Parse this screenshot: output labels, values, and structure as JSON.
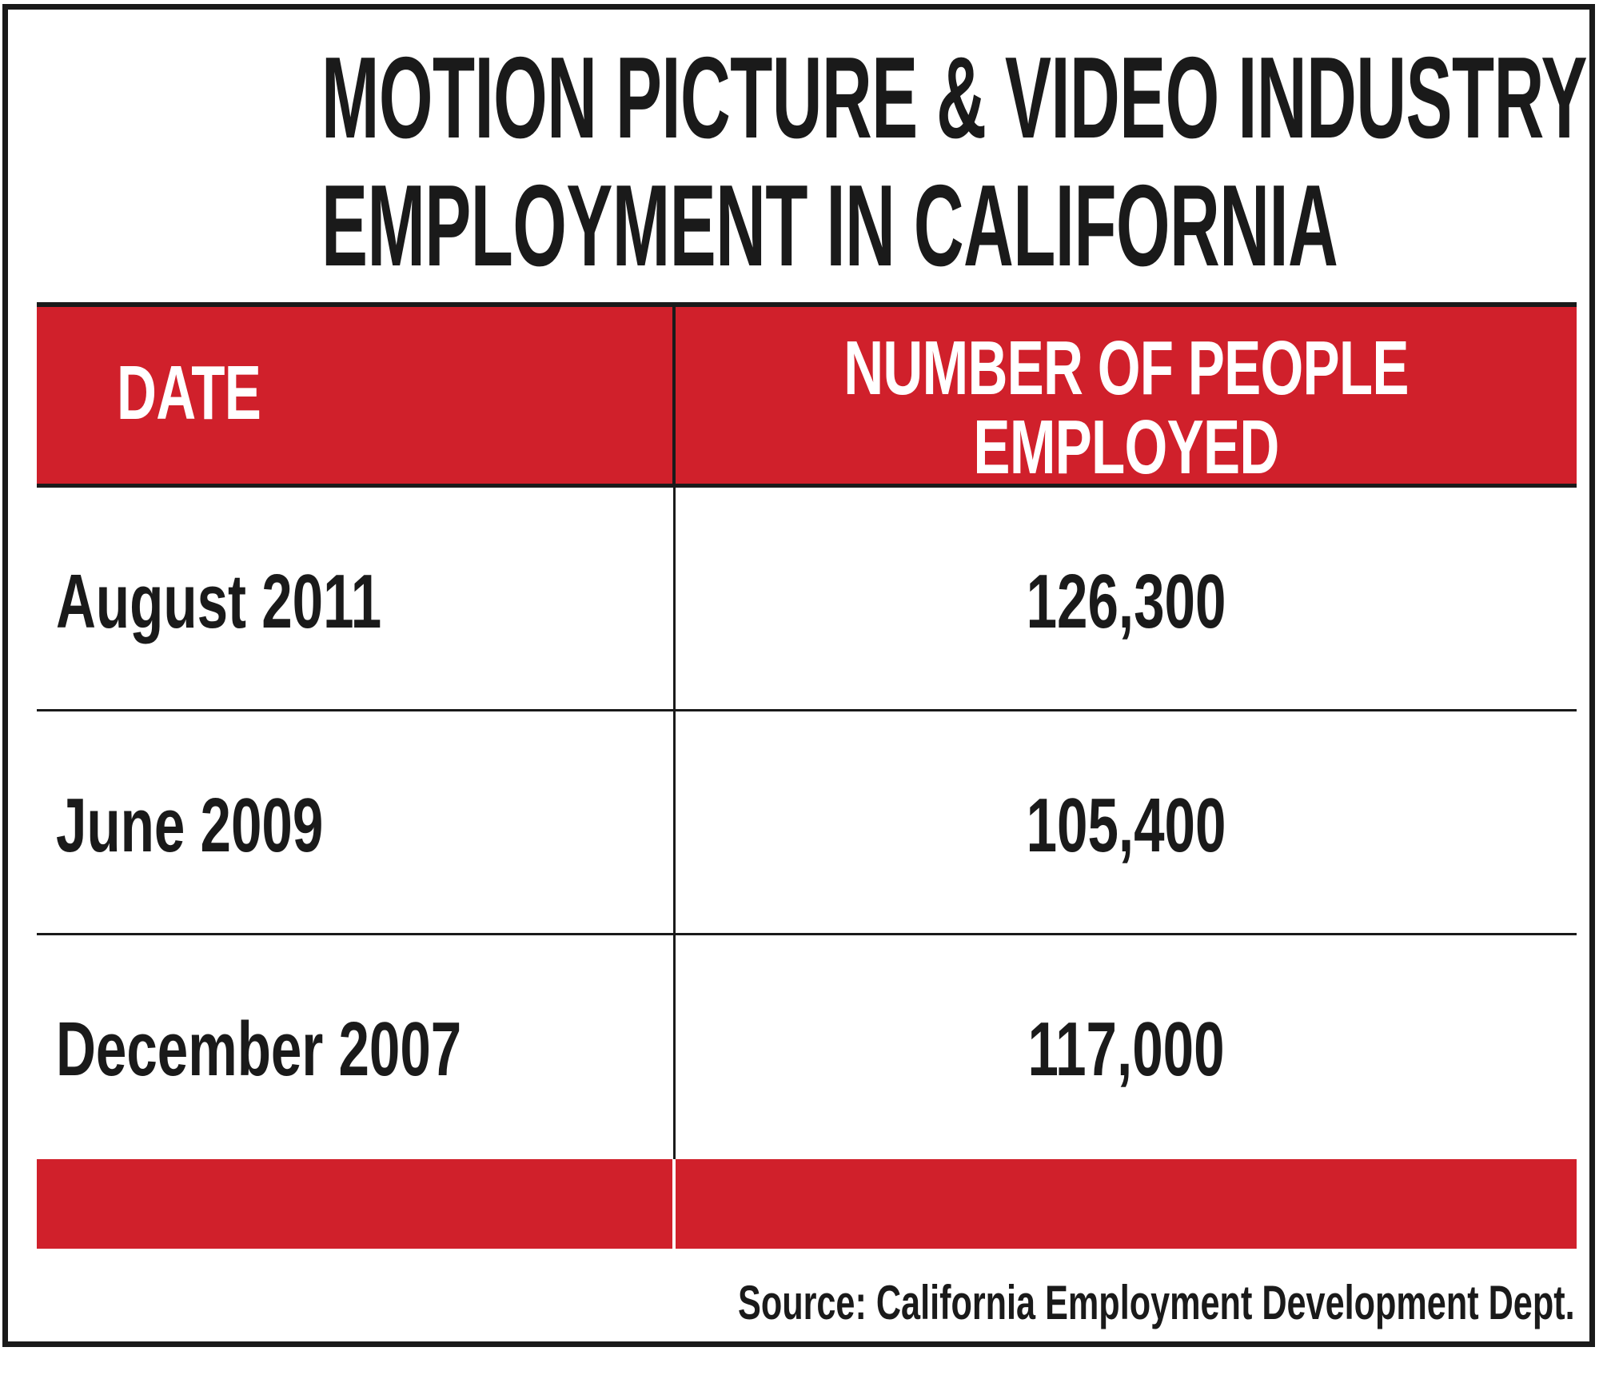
{
  "title": {
    "line1": "MOTION PICTURE & VIDEO INDUSTRY",
    "line2": "EMPLOYMENT IN CALIFORNIA"
  },
  "colors": {
    "header_red": "#d0202b",
    "text_dark": "#1a1a1a",
    "header_text": "#ffffff"
  },
  "chart_data": {
    "type": "table",
    "title": "MOTION PICTURE & VIDEO INDUSTRY EMPLOYMENT IN CALIFORNIA",
    "columns": [
      "DATE",
      "NUMBER OF PEOPLE EMPLOYED"
    ],
    "header": {
      "date": "DATE",
      "number_line1": "NUMBER OF PEOPLE",
      "number_line2": "EMPLOYED"
    },
    "rows": [
      {
        "date": "August 2011",
        "value": "126,300"
      },
      {
        "date": "June 2009",
        "value": "105,400"
      },
      {
        "date": "December 2007",
        "value": "117,000"
      }
    ],
    "values": [
      126300,
      105400,
      117000
    ]
  },
  "source": "Source: California Employment Development Dept."
}
